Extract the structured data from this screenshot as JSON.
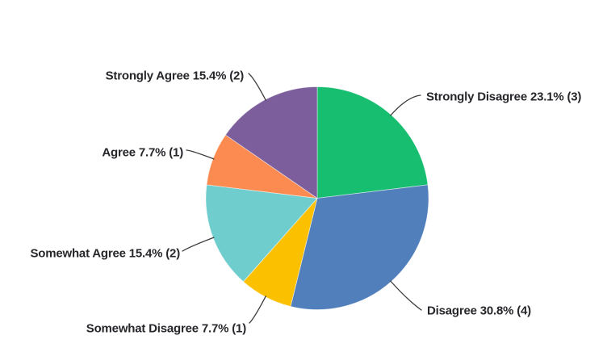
{
  "background_color": "#ffffff",
  "chart_data": {
    "type": "pie",
    "title": "",
    "legend": "none (direct labels with leader lines)",
    "start_angle": "12 o'clock, clockwise",
    "slices": [
      {
        "label": "Strongly Disagree",
        "percent": 23.1,
        "count": 3,
        "color": "#17be70",
        "display": "Strongly Disagree 23.1% (3)"
      },
      {
        "label": "Disagree",
        "percent": 30.8,
        "count": 4,
        "color": "#517fbc",
        "display": "Disagree 30.8% (4)"
      },
      {
        "label": "Somewhat Disagree",
        "percent": 7.7,
        "count": 1,
        "color": "#fbc000",
        "display": "Somewhat Disagree 7.7% (1)"
      },
      {
        "label": "Somewhat Agree",
        "percent": 15.4,
        "count": 2,
        "color": "#70cdce",
        "display": "Somewhat Agree 15.4% (2)"
      },
      {
        "label": "Agree",
        "percent": 7.7,
        "count": 1,
        "color": "#fb8b50",
        "display": "Agree 7.7% (1)"
      },
      {
        "label": "Strongly Agree",
        "percent": 15.4,
        "count": 2,
        "color": "#7b5e9b",
        "display": "Strongly Agree 15.4% (2)"
      }
    ],
    "leader_line_color": "#3c3c3c",
    "label_text_color": "#26262b"
  }
}
